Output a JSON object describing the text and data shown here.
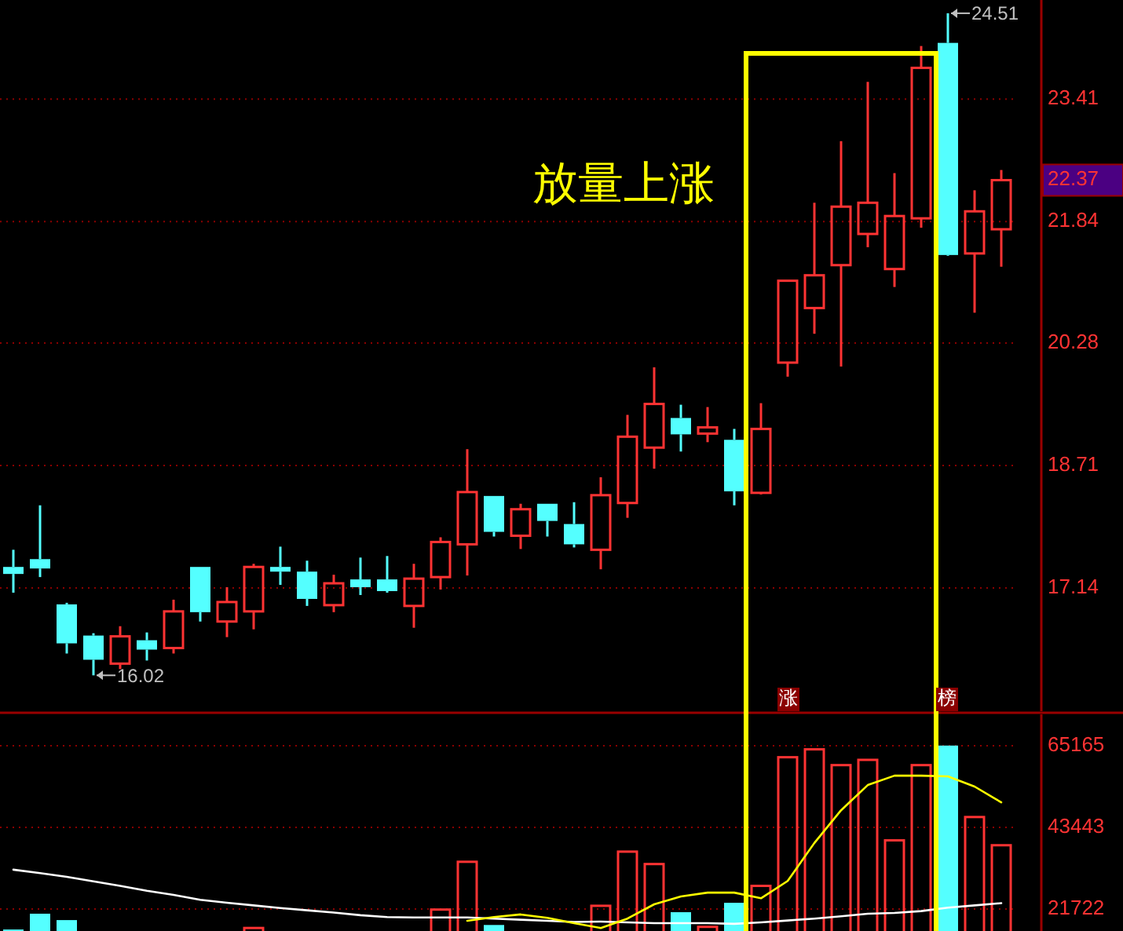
{
  "chart_data": [
    {
      "type": "candlestick",
      "categories": [
        null,
        null,
        null,
        null,
        null,
        null,
        null,
        null,
        null,
        null,
        null,
        null,
        null,
        null,
        null,
        null,
        null,
        null,
        null,
        null,
        null,
        null,
        null,
        null,
        null,
        null,
        null,
        null,
        null,
        null,
        null,
        null,
        null,
        null,
        null,
        null,
        null,
        null
      ],
      "ohlc": [
        [
          17.41,
          17.63,
          17.08,
          17.32
        ],
        [
          17.51,
          18.2,
          17.28,
          17.39
        ],
        [
          16.93,
          16.95,
          16.3,
          16.43
        ],
        [
          16.53,
          16.56,
          16.02,
          16.22
        ],
        [
          16.17,
          16.65,
          16.1,
          16.52
        ],
        [
          16.47,
          16.57,
          16.21,
          16.35
        ],
        [
          16.37,
          16.99,
          16.3,
          16.84
        ],
        [
          17.41,
          17.41,
          16.71,
          16.83
        ],
        [
          16.71,
          17.15,
          16.51,
          16.96
        ],
        [
          16.84,
          17.45,
          16.61,
          17.41
        ],
        [
          17.39,
          17.67,
          17.18,
          17.37
        ],
        [
          17.35,
          17.49,
          16.91,
          17.0
        ],
        [
          16.92,
          17.31,
          16.83,
          17.2
        ],
        [
          17.25,
          17.53,
          17.05,
          17.15
        ],
        [
          17.25,
          17.55,
          17.08,
          17.1
        ],
        [
          16.91,
          17.45,
          16.63,
          17.26
        ],
        [
          17.28,
          17.79,
          17.12,
          17.73
        ],
        [
          17.7,
          18.92,
          17.3,
          18.37
        ],
        [
          18.32,
          18.32,
          17.8,
          17.86
        ],
        [
          17.81,
          18.22,
          17.64,
          18.15
        ],
        [
          18.22,
          18.22,
          17.8,
          18.0
        ],
        [
          17.96,
          18.24,
          17.66,
          17.7
        ],
        [
          17.63,
          18.56,
          17.38,
          18.33
        ],
        [
          18.23,
          19.36,
          18.04,
          19.08
        ],
        [
          18.94,
          19.97,
          18.67,
          19.5
        ],
        [
          19.32,
          19.49,
          18.89,
          19.11
        ],
        [
          19.12,
          19.46,
          19.01,
          19.2
        ],
        [
          19.04,
          19.18,
          18.2,
          18.38
        ],
        [
          18.36,
          19.51,
          18.34,
          19.18
        ],
        [
          20.03,
          21.08,
          19.85,
          21.08
        ],
        [
          20.73,
          22.08,
          20.4,
          21.15
        ],
        [
          21.28,
          22.87,
          19.98,
          22.03
        ],
        [
          21.68,
          23.63,
          21.51,
          22.08
        ],
        [
          21.23,
          22.46,
          21.0,
          21.91
        ],
        [
          21.88,
          24.09,
          21.76,
          23.81
        ],
        [
          24.13,
          24.51,
          21.4,
          21.41
        ],
        [
          21.43,
          22.24,
          20.67,
          21.97
        ],
        [
          21.74,
          22.5,
          21.26,
          22.37
        ]
      ],
      "ylim": [
        15.56,
        24.68
      ],
      "yticks": [
        17.14,
        18.71,
        20.28,
        21.84,
        22.37,
        23.41
      ],
      "grid": "y",
      "tick_labels": "y",
      "annotations": [
        "放量上涨",
        "16.02",
        "24.51"
      ]
    },
    {
      "type": "bar",
      "categories": [
        null,
        null,
        null,
        null,
        null,
        null,
        null,
        null,
        null,
        null,
        null,
        null,
        null,
        null,
        null,
        null,
        null,
        null,
        null,
        null,
        null,
        null,
        null,
        null,
        null,
        null,
        null,
        null,
        null,
        null,
        null,
        null,
        null,
        null,
        null,
        null,
        null,
        null
      ],
      "series": [
        {
          "colors": [
            "#54ffff",
            "#54ffff",
            "#54ffff",
            null,
            null,
            null,
            null,
            null,
            null,
            "#ff3333",
            null,
            null,
            null,
            null,
            null,
            null,
            "#ff3333",
            "#ff3333",
            "#54ffff",
            null,
            null,
            null,
            "#ff3333",
            "#ff3333",
            "#ff3333",
            "#54ffff",
            "#ff3333",
            "#54ffff",
            "#ff3333",
            "#ff3333",
            "#ff3333",
            "#ff3333",
            "#ff3333",
            "#ff3333",
            "#ff3333",
            "#54ffff",
            "#ff3333",
            "#ff3333"
          ],
          "values": [
            16300,
            20500,
            18800,
            null,
            null,
            null,
            null,
            null,
            null,
            16700,
            null,
            null,
            null,
            null,
            null,
            null,
            21600,
            34300,
            17500,
            null,
            null,
            null,
            22600,
            37000,
            33700,
            20900,
            17000,
            23400,
            27900,
            62100,
            64200,
            60000,
            61400,
            40000,
            60000,
            65200,
            46200,
            38700
          ]
        },
        {
          "type": "line",
          "color": "#ffffff",
          "values": [
            32200,
            31300,
            30300,
            29100,
            27900,
            26600,
            25500,
            24200,
            23400,
            22700,
            22000,
            21400,
            20800,
            20100,
            19600,
            19500,
            19500,
            19500,
            19200,
            18900,
            18600,
            18300,
            18400,
            18200,
            18000,
            18000,
            18000,
            17800,
            18200,
            18700,
            19200,
            19800,
            20500,
            20700,
            21200,
            22100,
            22700,
            23300
          ]
        },
        {
          "type": "line",
          "color": "#ffff00",
          "values": [
            null,
            null,
            null,
            null,
            null,
            null,
            null,
            null,
            null,
            null,
            null,
            null,
            null,
            null,
            null,
            null,
            null,
            18600,
            19600,
            20300,
            19400,
            18000,
            16700,
            19200,
            23000,
            25100,
            26100,
            26100,
            24600,
            29200,
            39300,
            48000,
            54700,
            57200,
            57200,
            57000,
            54300,
            50100
          ]
        }
      ],
      "ylim": [
        15900,
        73500
      ],
      "yticks": [
        21722,
        43443,
        65165
      ],
      "grid": "y",
      "tick_labels": "y",
      "annotations": [
        "涨",
        "榜"
      ]
    }
  ]
}
